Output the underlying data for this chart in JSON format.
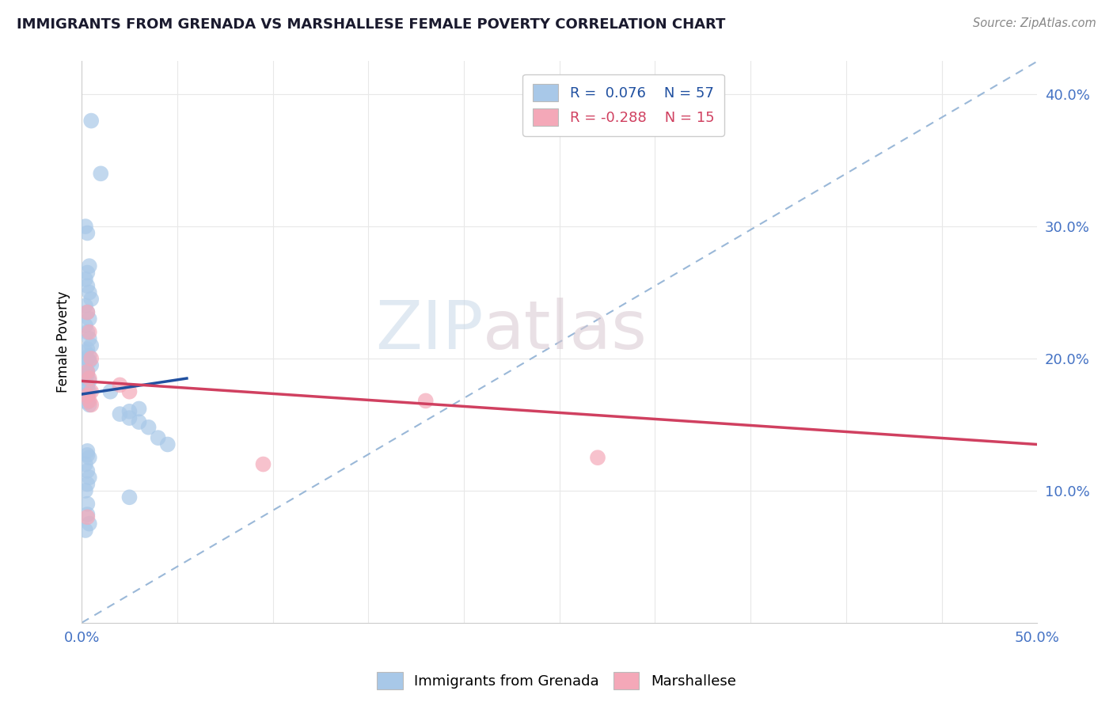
{
  "title": "IMMIGRANTS FROM GRENADA VS MARSHALLESE FEMALE POVERTY CORRELATION CHART",
  "source": "Source: ZipAtlas.com",
  "ylabel": "Female Poverty",
  "r_blue": 0.076,
  "n_blue": 57,
  "r_pink": -0.288,
  "n_pink": 15,
  "legend_label_blue": "Immigrants from Grenada",
  "legend_label_pink": "Marshallese",
  "xlim": [
    0.0,
    0.5
  ],
  "ylim": [
    0.0,
    0.425
  ],
  "yticks": [
    0.1,
    0.2,
    0.3,
    0.4
  ],
  "ytick_labels": [
    "10.0%",
    "20.0%",
    "30.0%",
    "40.0%"
  ],
  "xticks": [
    0.0,
    0.05,
    0.1,
    0.15,
    0.2,
    0.25,
    0.3,
    0.35,
    0.4,
    0.45,
    0.5
  ],
  "color_blue": "#a8c8e8",
  "color_pink": "#f4a8b8",
  "line_color_blue": "#2050a0",
  "line_color_pink": "#d04060",
  "trendline_dash_color": "#9ab8d8",
  "blue_scatter_x": [
    0.005,
    0.01,
    0.002,
    0.003,
    0.004,
    0.003,
    0.002,
    0.003,
    0.004,
    0.005,
    0.002,
    0.003,
    0.004,
    0.002,
    0.003,
    0.004,
    0.005,
    0.003,
    0.002,
    0.004,
    0.003,
    0.004,
    0.005,
    0.002,
    0.003,
    0.003,
    0.002,
    0.004,
    0.003,
    0.003,
    0.004,
    0.002,
    0.003,
    0.003,
    0.004,
    0.015,
    0.025,
    0.03,
    0.02,
    0.025,
    0.03,
    0.035,
    0.04,
    0.045,
    0.003,
    0.003,
    0.004,
    0.002,
    0.003,
    0.004,
    0.003,
    0.002,
    0.025,
    0.003,
    0.003,
    0.004,
    0.002
  ],
  "blue_scatter_y": [
    0.38,
    0.34,
    0.3,
    0.295,
    0.27,
    0.265,
    0.26,
    0.255,
    0.25,
    0.245,
    0.24,
    0.235,
    0.23,
    0.225,
    0.22,
    0.215,
    0.21,
    0.207,
    0.205,
    0.202,
    0.2,
    0.198,
    0.195,
    0.193,
    0.19,
    0.188,
    0.185,
    0.183,
    0.18,
    0.177,
    0.175,
    0.172,
    0.17,
    0.167,
    0.165,
    0.175,
    0.16,
    0.162,
    0.158,
    0.155,
    0.152,
    0.148,
    0.14,
    0.135,
    0.13,
    0.127,
    0.125,
    0.12,
    0.115,
    0.11,
    0.105,
    0.1,
    0.095,
    0.09,
    0.082,
    0.075,
    0.07
  ],
  "pink_scatter_x": [
    0.003,
    0.004,
    0.005,
    0.003,
    0.004,
    0.025,
    0.02,
    0.005,
    0.003,
    0.004,
    0.005,
    0.27,
    0.18,
    0.003,
    0.095
  ],
  "pink_scatter_y": [
    0.235,
    0.22,
    0.2,
    0.19,
    0.185,
    0.175,
    0.18,
    0.175,
    0.172,
    0.168,
    0.165,
    0.125,
    0.168,
    0.08,
    0.12
  ],
  "blue_line_x0": 0.0,
  "blue_line_y0": 0.173,
  "blue_line_x1": 0.055,
  "blue_line_y1": 0.185,
  "pink_line_x0": 0.0,
  "pink_line_y0": 0.183,
  "pink_line_x1": 0.5,
  "pink_line_y1": 0.135,
  "dash_line_x0": 0.0,
  "dash_line_y0": 0.0,
  "dash_line_x1": 0.5,
  "dash_line_y1": 0.425,
  "watermark_zip": "ZIP",
  "watermark_atlas": "atlas",
  "background_color": "#ffffff",
  "grid_color": "#e8e8e8"
}
